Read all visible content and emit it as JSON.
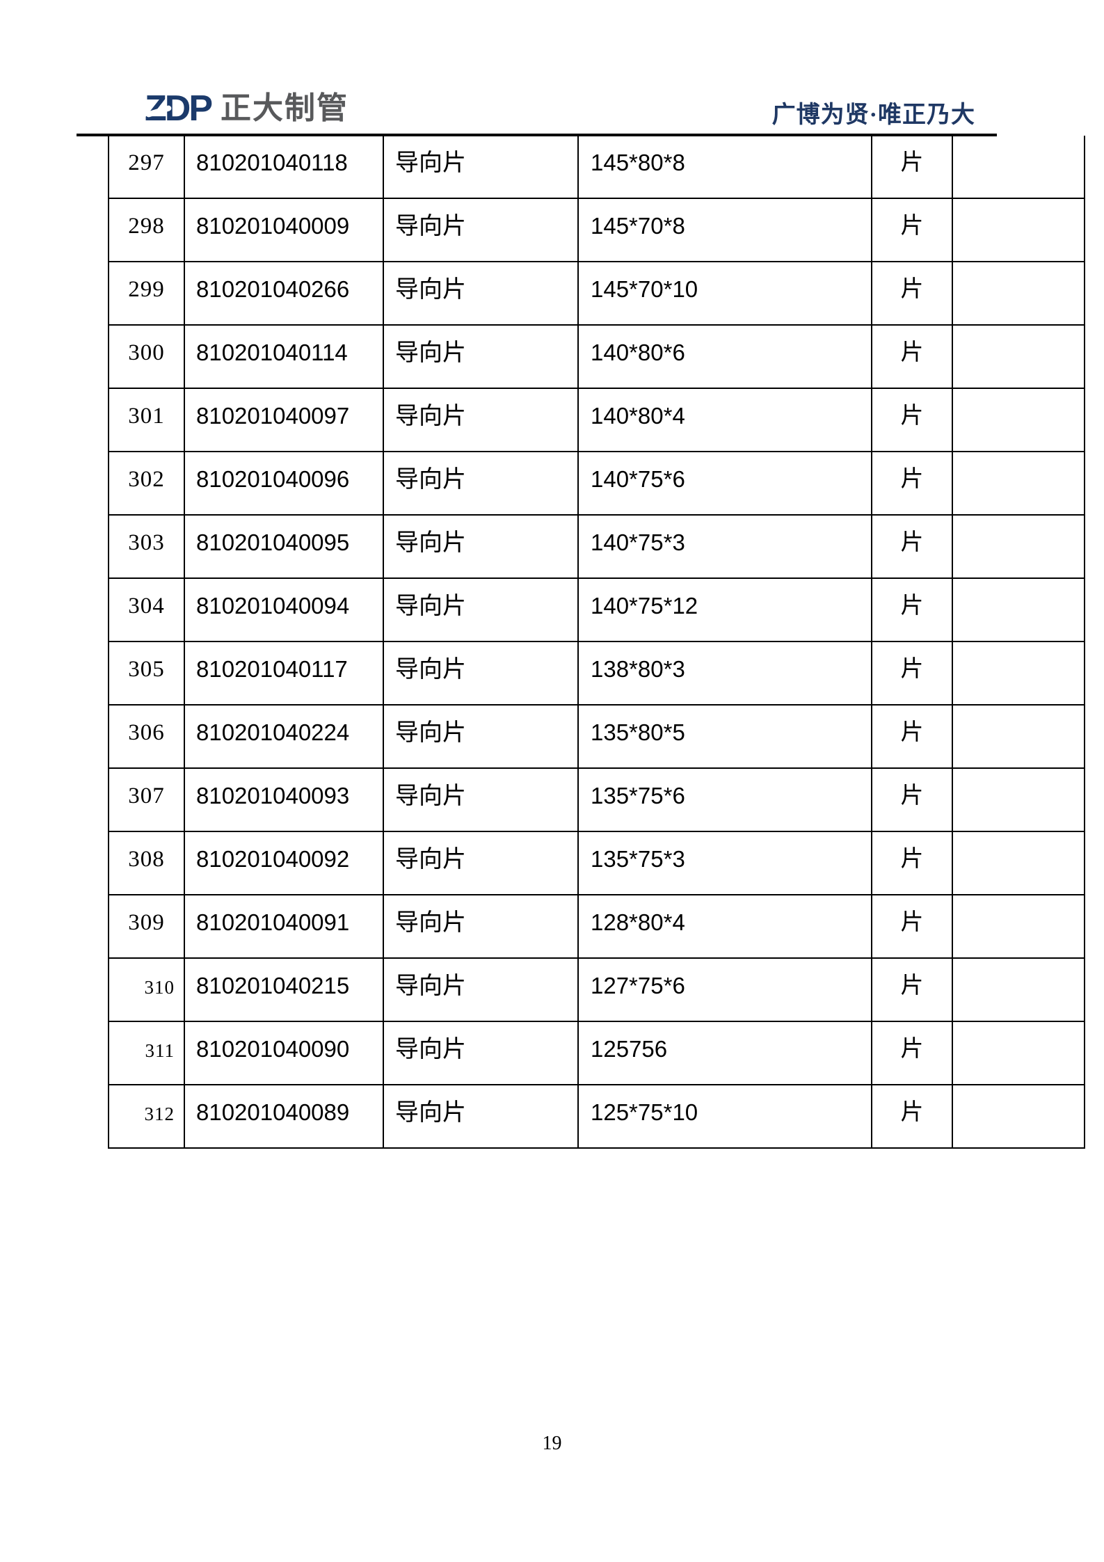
{
  "header": {
    "logo_abbr": "ZDP",
    "logo_company": "正大制管",
    "slogan": "广博为贤·唯正乃大"
  },
  "table": {
    "rows": [
      {
        "no": "297",
        "code": "810201040118",
        "name": "导向片",
        "spec": "145*80*8",
        "unit": "片",
        "note": ""
      },
      {
        "no": "298",
        "code": "810201040009",
        "name": "导向片",
        "spec": "145*70*8",
        "unit": "片",
        "note": ""
      },
      {
        "no": "299",
        "code": "810201040266",
        "name": "导向片",
        "spec": "145*70*10",
        "unit": "片",
        "note": ""
      },
      {
        "no": "300",
        "code": "810201040114",
        "name": "导向片",
        "spec": "140*80*6",
        "unit": "片",
        "note": ""
      },
      {
        "no": "301",
        "code": "810201040097",
        "name": "导向片",
        "spec": "140*80*4",
        "unit": "片",
        "note": ""
      },
      {
        "no": "302",
        "code": "810201040096",
        "name": "导向片",
        "spec": "140*75*6",
        "unit": "片",
        "note": ""
      },
      {
        "no": "303",
        "code": "810201040095",
        "name": "导向片",
        "spec": "140*75*3",
        "unit": "片",
        "note": ""
      },
      {
        "no": "304",
        "code": "810201040094",
        "name": "导向片",
        "spec": "140*75*12",
        "unit": "片",
        "note": ""
      },
      {
        "no": "305",
        "code": "810201040117",
        "name": "导向片",
        "spec": "138*80*3",
        "unit": "片",
        "note": ""
      },
      {
        "no": "306",
        "code": "810201040224",
        "name": "导向片",
        "spec": "135*80*5",
        "unit": "片",
        "note": ""
      },
      {
        "no": "307",
        "code": "810201040093",
        "name": "导向片",
        "spec": "135*75*6",
        "unit": "片",
        "note": ""
      },
      {
        "no": "308",
        "code": "810201040092",
        "name": "导向片",
        "spec": "135*75*3",
        "unit": "片",
        "note": ""
      },
      {
        "no": "309",
        "code": "810201040091",
        "name": "导向片",
        "spec": "128*80*4",
        "unit": "片",
        "note": ""
      },
      {
        "no": "310",
        "code": "810201040215",
        "name": "导向片",
        "spec": "127*75*6",
        "unit": "片",
        "note": "",
        "num_style": "small"
      },
      {
        "no": "311",
        "code": "810201040090",
        "name": "导向片",
        "spec": "125756",
        "unit": "片",
        "note": "",
        "num_style": "small"
      },
      {
        "no": "312",
        "code": "810201040089",
        "name": "导向片",
        "spec": "125*75*10",
        "unit": "片",
        "note": "",
        "num_style": "small"
      }
    ]
  },
  "footer": {
    "page_number": "19"
  },
  "colors": {
    "logo_navy": "#1b3a6b",
    "logo_gray": "#58595b",
    "slogan_navy": "#1f3864",
    "table_border": "#000000"
  }
}
